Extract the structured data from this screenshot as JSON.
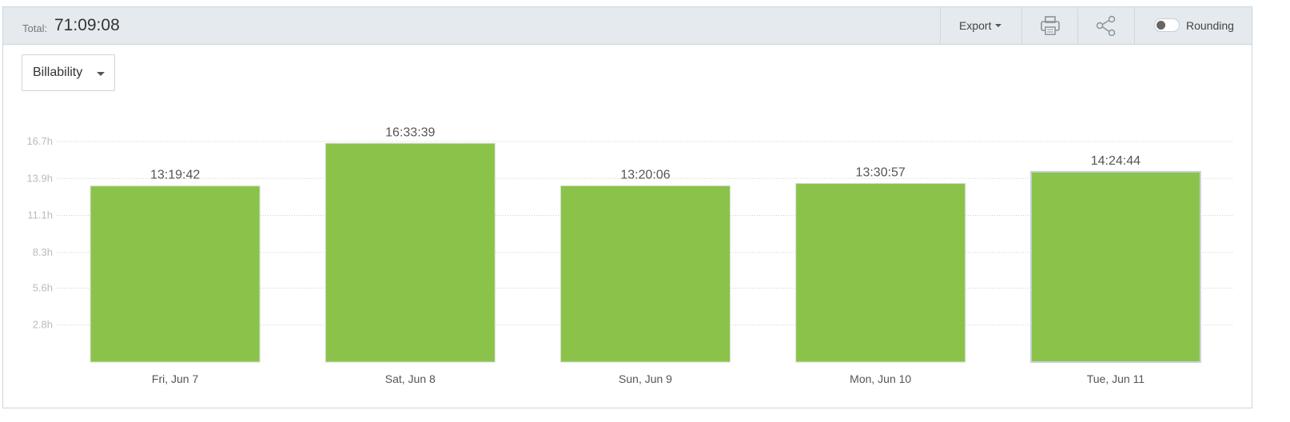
{
  "header": {
    "total_label": "Total:",
    "total_value": "71:09:08",
    "export_label": "Export",
    "print_icon": "printer-icon",
    "share_icon": "share-icon",
    "rounding_label": "Rounding",
    "rounding_on": false
  },
  "filter": {
    "dropdown_label": "Billability"
  },
  "colors": {
    "bar": "#8bc34a",
    "bar_highlight_border": "#c8d2d8",
    "grid": "#cfcfcf"
  },
  "chart_data": {
    "type": "bar",
    "categories": [
      "Fri, Jun 7",
      "Sat, Jun 8",
      "Sun, Jun 9",
      "Mon, Jun 10",
      "Tue, Jun 11"
    ],
    "values": [
      13.33,
      16.56,
      13.34,
      13.52,
      14.41
    ],
    "data_labels": [
      "13:19:42",
      "16:33:39",
      "13:20:06",
      "13:30:57",
      "14:24:44"
    ],
    "y_ticks": [
      2.8,
      5.6,
      8.3,
      11.1,
      13.9,
      16.7
    ],
    "y_tick_labels": [
      "2.8h",
      "5.6h",
      "8.3h",
      "11.1h",
      "13.9h",
      "16.7h"
    ],
    "ylim": [
      0,
      16.7
    ],
    "grid": true,
    "legend": "none"
  }
}
